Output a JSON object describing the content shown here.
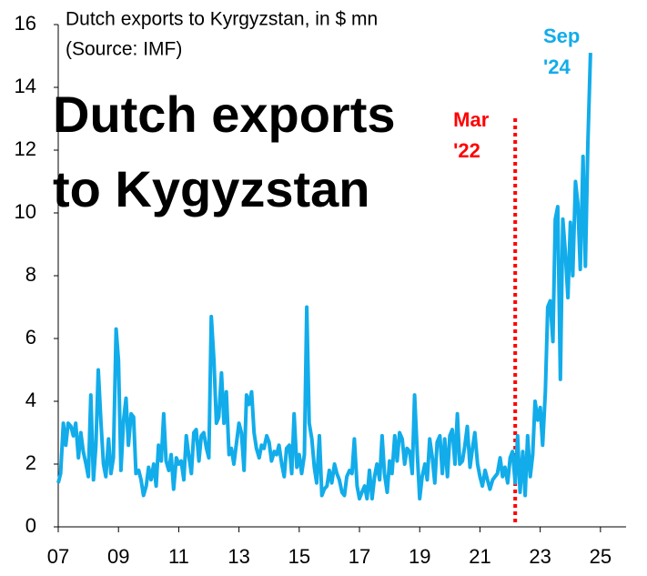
{
  "chart_data": {
    "type": "line",
    "title": "Dutch exports to Kyrgyzstan, in $ mn",
    "subtitle": "(Source: IMF)",
    "overlay_title": [
      "Dutch exports",
      "to Kygyzstan"
    ],
    "color": "#12acea",
    "xlim": [
      2007,
      2025.85
    ],
    "xticks": [
      {
        "value": 2007,
        "label": "07"
      },
      {
        "value": 2009,
        "label": "09"
      },
      {
        "value": 2011,
        "label": "11"
      },
      {
        "value": 2013,
        "label": "13"
      },
      {
        "value": 2015,
        "label": "15"
      },
      {
        "value": 2017,
        "label": "17"
      },
      {
        "value": 2019,
        "label": "19"
      },
      {
        "value": 2021,
        "label": "21"
      },
      {
        "value": 2023,
        "label": "23"
      },
      {
        "value": 2025,
        "label": "25"
      }
    ],
    "ylim": [
      0,
      16
    ],
    "yticks": [
      0,
      2,
      4,
      6,
      8,
      10,
      12,
      14,
      16
    ],
    "x": [
      2007.0,
      2007.08,
      2007.17,
      2007.25,
      2007.33,
      2007.42,
      2007.5,
      2007.58,
      2007.67,
      2007.75,
      2007.83,
      2007.92,
      2008.0,
      2008.08,
      2008.17,
      2008.25,
      2008.33,
      2008.42,
      2008.5,
      2008.58,
      2008.67,
      2008.75,
      2008.83,
      2008.92,
      2009.0,
      2009.08,
      2009.17,
      2009.25,
      2009.33,
      2009.42,
      2009.5,
      2009.58,
      2009.67,
      2009.75,
      2009.83,
      2009.92,
      2010.0,
      2010.08,
      2010.17,
      2010.25,
      2010.33,
      2010.42,
      2010.5,
      2010.58,
      2010.67,
      2010.75,
      2010.83,
      2010.92,
      2011.0,
      2011.08,
      2011.17,
      2011.25,
      2011.33,
      2011.42,
      2011.5,
      2011.58,
      2011.67,
      2011.75,
      2011.83,
      2011.92,
      2012.0,
      2012.08,
      2012.17,
      2012.25,
      2012.33,
      2012.42,
      2012.5,
      2012.58,
      2012.67,
      2012.75,
      2012.83,
      2012.92,
      2013.0,
      2013.08,
      2013.17,
      2013.25,
      2013.33,
      2013.42,
      2013.5,
      2013.58,
      2013.67,
      2013.75,
      2013.83,
      2013.92,
      2014.0,
      2014.08,
      2014.17,
      2014.25,
      2014.33,
      2014.42,
      2014.5,
      2014.58,
      2014.67,
      2014.75,
      2014.83,
      2014.92,
      2015.0,
      2015.08,
      2015.17,
      2015.25,
      2015.33,
      2015.42,
      2015.5,
      2015.58,
      2015.67,
      2015.75,
      2015.83,
      2015.92,
      2016.0,
      2016.08,
      2016.17,
      2016.25,
      2016.33,
      2016.42,
      2016.5,
      2016.58,
      2016.67,
      2016.75,
      2016.83,
      2016.92,
      2017.0,
      2017.08,
      2017.17,
      2017.25,
      2017.33,
      2017.42,
      2017.5,
      2017.58,
      2017.67,
      2017.75,
      2017.83,
      2017.92,
      2018.0,
      2018.08,
      2018.17,
      2018.25,
      2018.33,
      2018.42,
      2018.5,
      2018.58,
      2018.67,
      2018.75,
      2018.83,
      2018.92,
      2019.0,
      2019.08,
      2019.17,
      2019.25,
      2019.33,
      2019.42,
      2019.5,
      2019.58,
      2019.67,
      2019.75,
      2019.83,
      2019.92,
      2020.0,
      2020.08,
      2020.17,
      2020.25,
      2020.33,
      2020.42,
      2020.5,
      2020.58,
      2020.67,
      2020.75,
      2020.83,
      2020.92,
      2021.0,
      2021.08,
      2021.17,
      2021.25,
      2021.33,
      2021.42,
      2021.5,
      2021.58,
      2021.67,
      2021.75,
      2021.83,
      2021.92,
      2022.0,
      2022.08,
      2022.17,
      2022.25,
      2022.33,
      2022.42,
      2022.5,
      2022.58,
      2022.67,
      2022.75,
      2022.83,
      2022.92,
      2023.0,
      2023.08,
      2023.17,
      2023.25,
      2023.33,
      2023.42,
      2023.5,
      2023.58,
      2023.67,
      2023.75,
      2023.83,
      2023.92,
      2024.0,
      2024.08,
      2024.17,
      2024.25,
      2024.33,
      2024.42,
      2024.5,
      2024.58,
      2024.67
    ],
    "values": [
      1.4,
      1.7,
      3.3,
      2.6,
      3.3,
      3.2,
      2.9,
      3.3,
      2.2,
      3.0,
      2.4,
      2.0,
      1.6,
      4.2,
      1.5,
      2.6,
      5.0,
      3.3,
      2.0,
      1.6,
      2.8,
      1.7,
      2.2,
      6.3,
      5.3,
      1.8,
      3.4,
      4.1,
      2.6,
      3.6,
      3.5,
      1.7,
      1.8,
      1.5,
      1.0,
      1.3,
      1.9,
      1.5,
      2.0,
      1.3,
      2.6,
      2.1,
      3.6,
      2.1,
      1.8,
      2.3,
      1.2,
      2.2,
      2.0,
      2.1,
      1.5,
      2.9,
      2.3,
      1.7,
      3.0,
      3.1,
      2.1,
      2.9,
      3.0,
      2.5,
      2.2,
      6.7,
      5.3,
      3.3,
      3.5,
      4.9,
      3.3,
      4.3,
      2.3,
      2.5,
      2.0,
      2.7,
      3.3,
      3.0,
      1.8,
      4.2,
      3.9,
      4.3,
      3.0,
      2.5,
      2.2,
      2.6,
      2.5,
      2.9,
      2.7,
      2.1,
      2.4,
      2.3,
      2.6,
      2.0,
      1.6,
      2.5,
      2.6,
      1.7,
      3.6,
      1.9,
      2.3,
      1.7,
      2.3,
      7.0,
      3.3,
      2.8,
      1.9,
      1.4,
      2.9,
      1.0,
      1.2,
      1.3,
      1.8,
      1.4,
      2.0,
      1.7,
      1.5,
      1.1,
      1.0,
      1.6,
      1.8,
      1.7,
      2.8,
      1.3,
      0.9,
      1.1,
      1.3,
      0.9,
      1.8,
      0.9,
      1.6,
      2.0,
      1.5,
      2.9,
      1.7,
      1.1,
      2.1,
      1.7,
      2.9,
      2.1,
      3.0,
      2.8,
      2.0,
      2.5,
      2.4,
      1.7,
      4.2,
      2.3,
      0.9,
      1.6,
      2.0,
      1.5,
      2.8,
      2.2,
      1.4,
      2.7,
      2.9,
      1.7,
      2.8,
      1.6,
      2.9,
      3.1,
      2.0,
      3.6,
      2.0,
      2.1,
      2.6,
      3.2,
      1.9,
      2.5,
      3.0,
      2.0,
      1.6,
      1.3,
      1.8,
      1.5,
      1.2,
      1.5,
      1.6,
      1.7,
      2.2,
      1.6,
      1.9,
      1.4,
      2.2,
      2.4,
      1.4,
      2.9,
      1.1,
      2.4,
      1.0,
      2.9,
      1.6,
      2.3,
      4.0,
      3.4,
      3.8,
      2.6,
      4.3,
      7.0,
      7.2,
      5.9,
      9.8,
      10.2,
      4.7,
      9.8,
      8.8,
      7.3,
      9.7,
      8.0,
      11.0,
      10.3,
      8.2,
      11.8,
      8.3,
      12.2,
      15.1
    ],
    "vline": {
      "x": 2022.17,
      "label": [
        "Mar",
        "'22"
      ],
      "color": "#ff0000"
    },
    "end_label": [
      "Sep",
      "'24"
    ]
  }
}
